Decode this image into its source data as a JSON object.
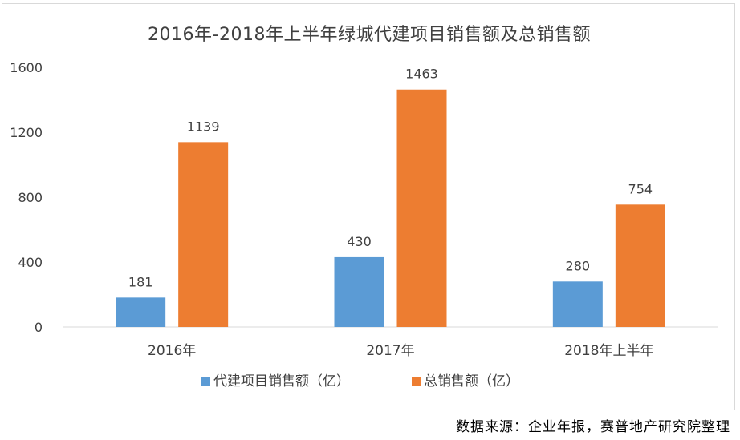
{
  "chart_data": {
    "type": "bar",
    "title": "2016年-2018年上半年绿城代建项目销售额及总销售额",
    "categories": [
      "2016年",
      "2017年",
      "2018年上半年"
    ],
    "series": [
      {
        "name": "代建项目销售额（亿）",
        "values": [
          181,
          430,
          280
        ],
        "color": "#5b9bd5"
      },
      {
        "name": "总销售额（亿）",
        "values": [
          1139,
          1463,
          754
        ],
        "color": "#ed7d31"
      }
    ],
    "yticks": [
      "0",
      "400",
      "800",
      "1200",
      "1600"
    ],
    "ylim": [
      0,
      1600
    ],
    "xlabel": "",
    "ylabel": "",
    "grid": false,
    "legend": "bottom"
  },
  "source_note": "数据来源：企业年报，赛普地产研究院整理"
}
